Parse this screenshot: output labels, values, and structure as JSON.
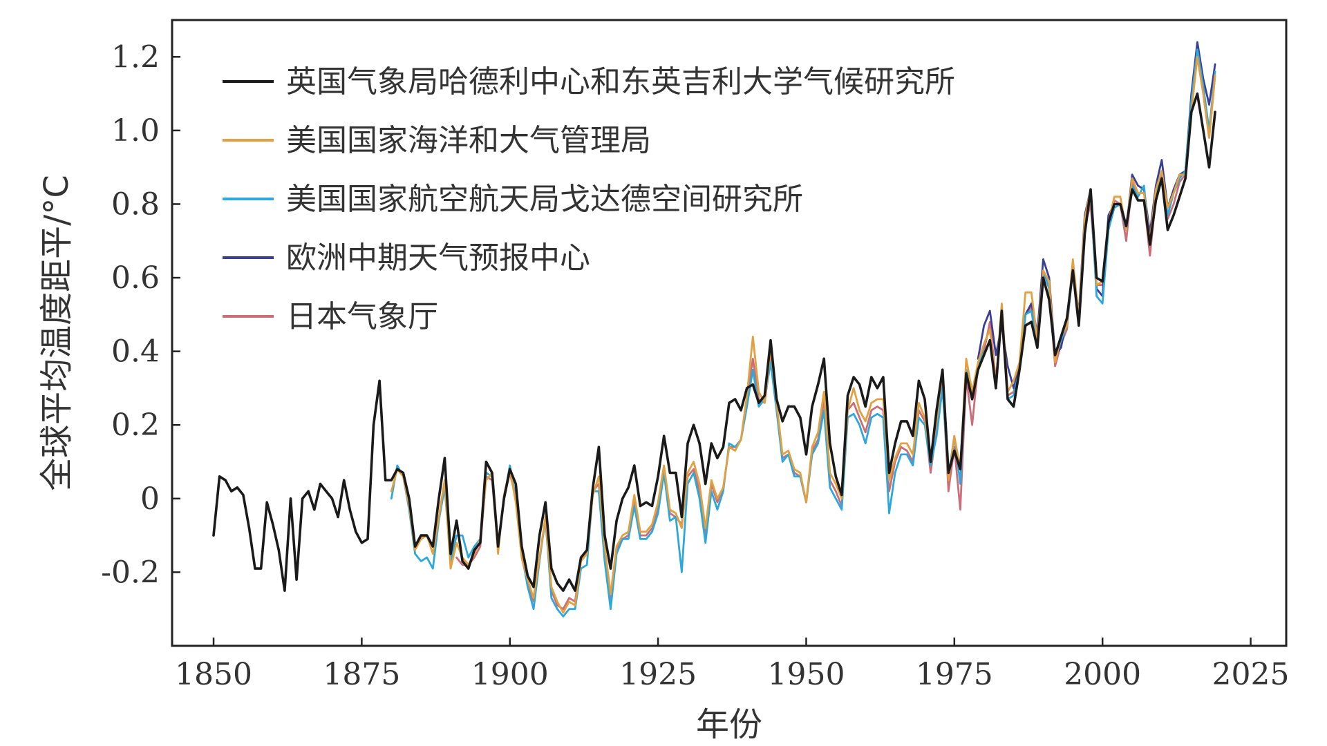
{
  "chart_data": {
    "type": "line",
    "xlabel": "年份",
    "ylabel": "全球平均温度距平/°C",
    "xlim": [
      1843,
      2031
    ],
    "ylim": [
      -0.4,
      1.3
    ],
    "xticks": [
      1850,
      1875,
      1900,
      1925,
      1950,
      1975,
      2000,
      2025
    ],
    "yticks": [
      -0.2,
      0,
      0.2,
      0.4,
      0.6,
      0.8,
      1.0,
      1.2
    ],
    "ytick_labels": [
      "-0.2",
      "0",
      "0.2",
      "0.4",
      "0.6",
      "0.8",
      "1.0",
      "1.2"
    ],
    "grid": false,
    "legend_position": "top-left",
    "series": [
      {
        "name": "英国气象局哈德利中心和东英吉利大学气候研究所",
        "color": "#1a1a1a",
        "x_start": 1850,
        "values": [
          -0.1,
          0.06,
          0.05,
          0.02,
          0.03,
          0.01,
          -0.08,
          -0.19,
          -0.19,
          -0.01,
          -0.07,
          -0.14,
          -0.25,
          0.0,
          -0.22,
          0.0,
          0.02,
          -0.03,
          0.04,
          0.02,
          0.0,
          -0.05,
          0.05,
          -0.03,
          -0.09,
          -0.12,
          -0.11,
          0.2,
          0.32,
          0.05,
          0.05,
          0.08,
          0.07,
          0.0,
          -0.13,
          -0.1,
          -0.1,
          -0.13,
          0.0,
          0.11,
          -0.15,
          -0.06,
          -0.17,
          -0.19,
          -0.14,
          -0.12,
          0.1,
          0.07,
          -0.13,
          0.0,
          0.08,
          0.04,
          -0.13,
          -0.21,
          -0.24,
          -0.1,
          -0.01,
          -0.19,
          -0.23,
          -0.25,
          -0.22,
          -0.25,
          -0.16,
          -0.14,
          0.03,
          0.14,
          -0.1,
          -0.19,
          -0.06,
          0.0,
          0.03,
          0.09,
          -0.02,
          -0.01,
          -0.02,
          0.06,
          0.17,
          0.07,
          0.07,
          -0.05,
          0.15,
          0.2,
          0.15,
          0.04,
          0.15,
          0.11,
          0.14,
          0.26,
          0.27,
          0.24,
          0.3,
          0.31,
          0.26,
          0.28,
          0.43,
          0.27,
          0.21,
          0.25,
          0.25,
          0.22,
          0.12,
          0.25,
          0.31,
          0.38,
          0.15,
          0.06,
          0.01,
          0.28,
          0.33,
          0.31,
          0.25,
          0.33,
          0.3,
          0.33,
          0.07,
          0.15,
          0.21,
          0.21,
          0.17,
          0.32,
          0.27,
          0.1,
          0.24,
          0.35,
          0.07,
          0.13,
          0.08,
          0.34,
          0.27,
          0.35,
          0.39,
          0.43,
          0.3,
          0.51,
          0.27,
          0.25,
          0.35,
          0.47,
          0.48,
          0.41,
          0.6,
          0.54,
          0.39,
          0.44,
          0.49,
          0.62,
          0.47,
          0.72,
          0.84,
          0.6,
          0.59,
          0.75,
          0.8,
          0.8,
          0.74,
          0.84,
          0.81,
          0.81,
          0.69,
          0.81,
          0.87,
          0.73,
          0.77,
          0.82,
          0.87,
          1.05,
          1.1,
          1.0,
          0.9,
          1.05
        ]
      },
      {
        "name": "美国国家海洋和大气管理局",
        "color": "#e3a040",
        "x_start": 1880,
        "values": [
          0.02,
          0.08,
          0.06,
          -0.02,
          -0.14,
          -0.11,
          -0.1,
          -0.15,
          -0.05,
          0.05,
          -0.19,
          -0.12,
          -0.16,
          -0.18,
          -0.15,
          -0.11,
          0.05,
          0.07,
          -0.15,
          0.01,
          0.08,
          -0.01,
          -0.16,
          -0.22,
          -0.27,
          -0.16,
          -0.05,
          -0.24,
          -0.28,
          -0.31,
          -0.28,
          -0.29,
          -0.17,
          -0.15,
          0.01,
          0.06,
          -0.13,
          -0.26,
          -0.13,
          -0.1,
          -0.09,
          0.01,
          -0.09,
          -0.09,
          -0.07,
          -0.01,
          0.09,
          -0.03,
          -0.04,
          -0.08,
          0.07,
          0.1,
          0.04,
          -0.08,
          0.05,
          0.0,
          0.03,
          0.14,
          0.13,
          0.16,
          0.28,
          0.44,
          0.29,
          0.26,
          0.41,
          0.26,
          0.12,
          0.13,
          0.08,
          0.07,
          -0.01,
          0.14,
          0.18,
          0.29,
          0.07,
          0.04,
          0.0,
          0.24,
          0.3,
          0.24,
          0.21,
          0.26,
          0.27,
          0.27,
          0.05,
          0.11,
          0.15,
          0.15,
          0.12,
          0.26,
          0.22,
          0.11,
          0.21,
          0.35,
          0.05,
          0.17,
          0.08,
          0.38,
          0.29,
          0.37,
          0.42,
          0.46,
          0.31,
          0.53,
          0.29,
          0.32,
          0.37,
          0.56,
          0.56,
          0.43,
          0.62,
          0.59,
          0.37,
          0.44,
          0.47,
          0.65,
          0.49,
          0.76,
          0.84,
          0.58,
          0.59,
          0.75,
          0.82,
          0.82,
          0.73,
          0.87,
          0.83,
          0.83,
          0.7,
          0.84,
          0.89,
          0.79,
          0.83,
          0.88,
          0.88,
          1.05,
          1.2,
          1.1,
          0.98,
          1.15
        ]
      },
      {
        "name": "美国国家航空航天局戈达德空间研究所",
        "color": "#2ea8dc",
        "x_start": 1880,
        "values": [
          0.0,
          0.09,
          0.06,
          -0.03,
          -0.15,
          -0.17,
          -0.16,
          -0.19,
          -0.06,
          0.03,
          -0.17,
          -0.1,
          -0.1,
          -0.16,
          -0.13,
          -0.11,
          0.07,
          0.06,
          -0.13,
          0.0,
          0.09,
          0.0,
          -0.15,
          -0.24,
          -0.3,
          -0.17,
          -0.05,
          -0.27,
          -0.3,
          -0.32,
          -0.3,
          -0.3,
          -0.19,
          -0.18,
          0.02,
          0.02,
          -0.17,
          -0.3,
          -0.15,
          -0.11,
          -0.11,
          -0.02,
          -0.11,
          -0.11,
          -0.09,
          -0.04,
          0.07,
          -0.06,
          -0.05,
          -0.2,
          0.04,
          0.07,
          0.0,
          -0.12,
          0.02,
          -0.03,
          0.02,
          0.15,
          0.14,
          0.16,
          0.25,
          0.35,
          0.25,
          0.27,
          0.37,
          0.24,
          0.1,
          0.12,
          0.06,
          0.06,
          -0.01,
          0.12,
          0.15,
          0.24,
          0.03,
          0.0,
          -0.03,
          0.22,
          0.23,
          0.2,
          0.15,
          0.22,
          0.23,
          0.22,
          -0.04,
          0.07,
          0.12,
          0.12,
          0.09,
          0.22,
          0.2,
          0.09,
          0.17,
          0.3,
          0.06,
          0.17,
          0.04,
          0.35,
          0.27,
          0.35,
          0.42,
          0.46,
          0.3,
          0.51,
          0.27,
          0.28,
          0.35,
          0.5,
          0.51,
          0.41,
          0.62,
          0.57,
          0.38,
          0.43,
          0.47,
          0.62,
          0.47,
          0.75,
          0.83,
          0.55,
          0.53,
          0.73,
          0.79,
          0.8,
          0.73,
          0.85,
          0.82,
          0.85,
          0.69,
          0.83,
          0.89,
          0.77,
          0.83,
          0.87,
          0.89,
          1.08,
          1.22,
          1.12,
          1.0,
          1.16
        ]
      },
      {
        "name": "欧洲中期天气预报中心",
        "color": "#3b3e96",
        "x_start": 1979,
        "values": [
          0.38,
          0.47,
          0.51,
          0.39,
          0.47,
          0.36,
          0.3,
          0.36,
          0.5,
          0.53,
          0.45,
          0.65,
          0.6,
          0.39,
          0.41,
          0.49,
          0.63,
          0.5,
          0.77,
          0.84,
          0.57,
          0.55,
          0.77,
          0.8,
          0.8,
          0.73,
          0.88,
          0.85,
          0.84,
          0.72,
          0.85,
          0.92,
          0.79,
          0.84,
          0.88,
          0.89,
          1.1,
          1.24,
          1.14,
          1.07,
          1.18
        ]
      },
      {
        "name": "日本气象厅",
        "color": "#cc6e78",
        "x_start": 1891,
        "values": [
          -0.16,
          -0.18,
          -0.18,
          -0.16,
          -0.13,
          0.06,
          0.05,
          -0.14,
          0.0,
          0.07,
          0.0,
          -0.16,
          -0.23,
          -0.28,
          -0.16,
          -0.06,
          -0.25,
          -0.29,
          -0.3,
          -0.27,
          -0.28,
          -0.16,
          -0.15,
          0.02,
          0.04,
          -0.15,
          -0.28,
          -0.14,
          -0.11,
          -0.1,
          -0.01,
          -0.1,
          -0.1,
          -0.08,
          -0.03,
          0.08,
          -0.04,
          -0.05,
          -0.07,
          0.06,
          0.08,
          0.02,
          -0.1,
          0.04,
          -0.01,
          0.03,
          0.14,
          0.14,
          0.16,
          0.27,
          0.38,
          0.27,
          0.26,
          0.39,
          0.25,
          0.11,
          0.12,
          0.07,
          0.06,
          -0.01,
          0.13,
          0.16,
          0.27,
          0.05,
          0.02,
          -0.02,
          0.24,
          0.26,
          0.22,
          0.18,
          0.24,
          0.25,
          0.24,
          0.02,
          0.1,
          0.14,
          0.13,
          0.1,
          0.24,
          0.21,
          0.07,
          0.19,
          0.32,
          0.02,
          0.14,
          -0.03,
          0.33,
          0.2,
          0.36,
          0.4,
          0.48,
          0.32,
          0.49,
          0.28,
          0.29,
          0.35,
          0.5,
          0.52,
          0.42,
          0.62,
          0.57,
          0.36,
          0.42,
          0.46,
          0.63,
          0.47,
          0.74,
          0.8,
          0.58,
          0.58,
          0.75,
          0.81,
          0.8,
          0.7,
          0.86,
          0.81,
          0.81,
          0.66,
          0.82,
          0.88,
          0.76,
          0.8,
          0.86,
          0.88,
          1.08,
          1.2,
          1.1,
          0.98,
          1.15
        ]
      }
    ]
  }
}
